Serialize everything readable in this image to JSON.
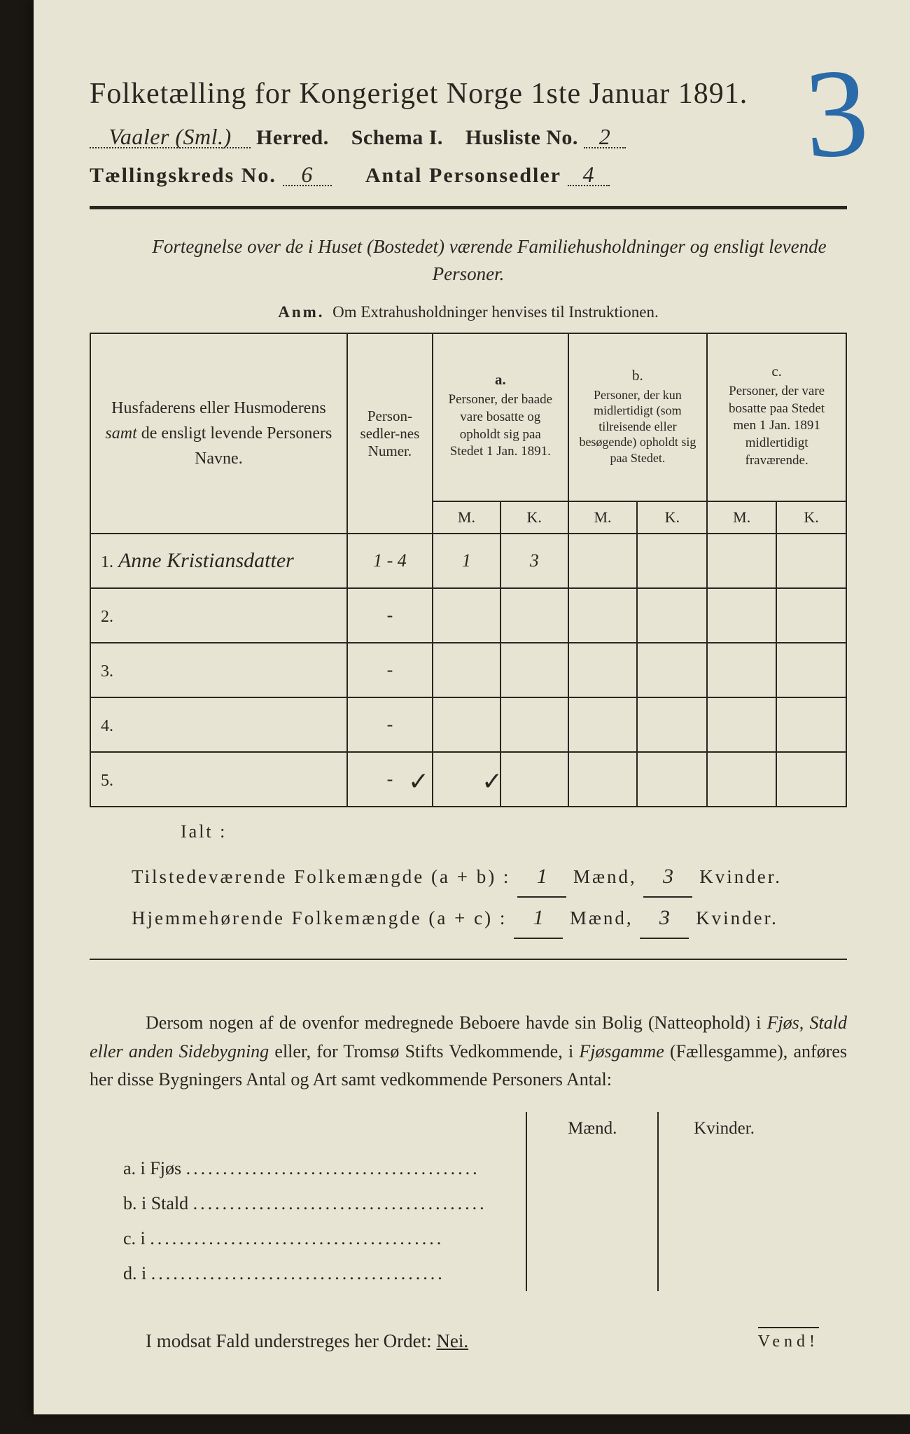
{
  "page_annotation": "3",
  "annotation_color": "#2a6aa8",
  "header": {
    "title_prefix": "Folketælling for Kongeriget Norge 1ste Januar 1891.",
    "herred_value": "Vaaler (Sml.)",
    "herred_label": "Herred.",
    "schema_label": "Schema I.",
    "husliste_label": "Husliste No.",
    "husliste_value": "2",
    "kreds_label": "Tællingskreds No.",
    "kreds_value": "6",
    "antal_label": "Antal Personsedler",
    "antal_value": "4"
  },
  "intro": {
    "line": "Fortegnelse over de i Huset (Bostedet) værende Familiehusholdninger og ensligt levende Personer.",
    "anm_label": "Anm.",
    "anm_text": "Om Extrahusholdninger henvises til Instruktionen."
  },
  "table": {
    "col_names": "Husfaderens eller Husmoderens samt de ensligt levende Personers Navne.",
    "col_person": "Person-sedler-nes Numer.",
    "col_a_label": "a.",
    "col_a_text": "Personer, der baade vare bosatte og opholdt sig paa Stedet 1 Jan. 1891.",
    "col_b_label": "b.",
    "col_b_text": "Personer, der kun midlertidigt (som tilreisende eller besøgende) opholdt sig paa Stedet.",
    "col_c_label": "c.",
    "col_c_text": "Personer, der vare bosatte paa Stedet men 1 Jan. 1891 midlertidigt fraværende.",
    "m_label": "M.",
    "k_label": "K.",
    "rows": [
      {
        "n": "1.",
        "name": "Anne Kristiansdatter",
        "person": "1 - 4",
        "a_m": "1",
        "a_k": "3",
        "b_m": "",
        "b_k": "",
        "c_m": "",
        "c_k": ""
      },
      {
        "n": "2.",
        "name": "",
        "person": "-",
        "a_m": "",
        "a_k": "",
        "b_m": "",
        "b_k": "",
        "c_m": "",
        "c_k": ""
      },
      {
        "n": "3.",
        "name": "",
        "person": "-",
        "a_m": "",
        "a_k": "",
        "b_m": "",
        "b_k": "",
        "c_m": "",
        "c_k": ""
      },
      {
        "n": "4.",
        "name": "",
        "person": "-",
        "a_m": "",
        "a_k": "",
        "b_m": "",
        "b_k": "",
        "c_m": "",
        "c_k": ""
      },
      {
        "n": "5.",
        "name": "",
        "person": "-",
        "a_m": "",
        "a_k": "",
        "b_m": "",
        "b_k": "",
        "c_m": "",
        "c_k": ""
      }
    ],
    "check_a_m": "✓",
    "check_a_k": "✓"
  },
  "ialt_label": "Ialt :",
  "summary": {
    "line1_label": "Tilstedeværende Folkemængde (a + b) :",
    "line2_label": "Hjemmehørende Folkemængde (a + c) :",
    "maend_label": "Mænd,",
    "kvinder_label": "Kvinder.",
    "line1_m": "1",
    "line1_k": "3",
    "line2_m": "1",
    "line2_k": "3"
  },
  "paragraph": "Dersom nogen af de ovenfor medregnede Beboere havde sin Bolig (Natteophold) i Fjøs, Stald eller anden Sidebygning eller, for Tromsø Stifts Vedkommende, i Fjøsgamme (Fællesgamme), anføres her disse Bygningers Antal og Art samt vedkommende Personers Antal:",
  "side_table": {
    "maend": "Mænd.",
    "kvinder": "Kvinder.",
    "rows": [
      {
        "lead": "a.  i      Fjøs"
      },
      {
        "lead": "b.  i      Stald"
      },
      {
        "lead": "c.  i"
      },
      {
        "lead": "d.  i"
      }
    ]
  },
  "modsat": "I modsat Fald understreges her Ordet: Nei.",
  "vend": "Vend!",
  "colors": {
    "paper": "#e8e4d4",
    "ink": "#2a2620",
    "background": "#1a1612"
  }
}
